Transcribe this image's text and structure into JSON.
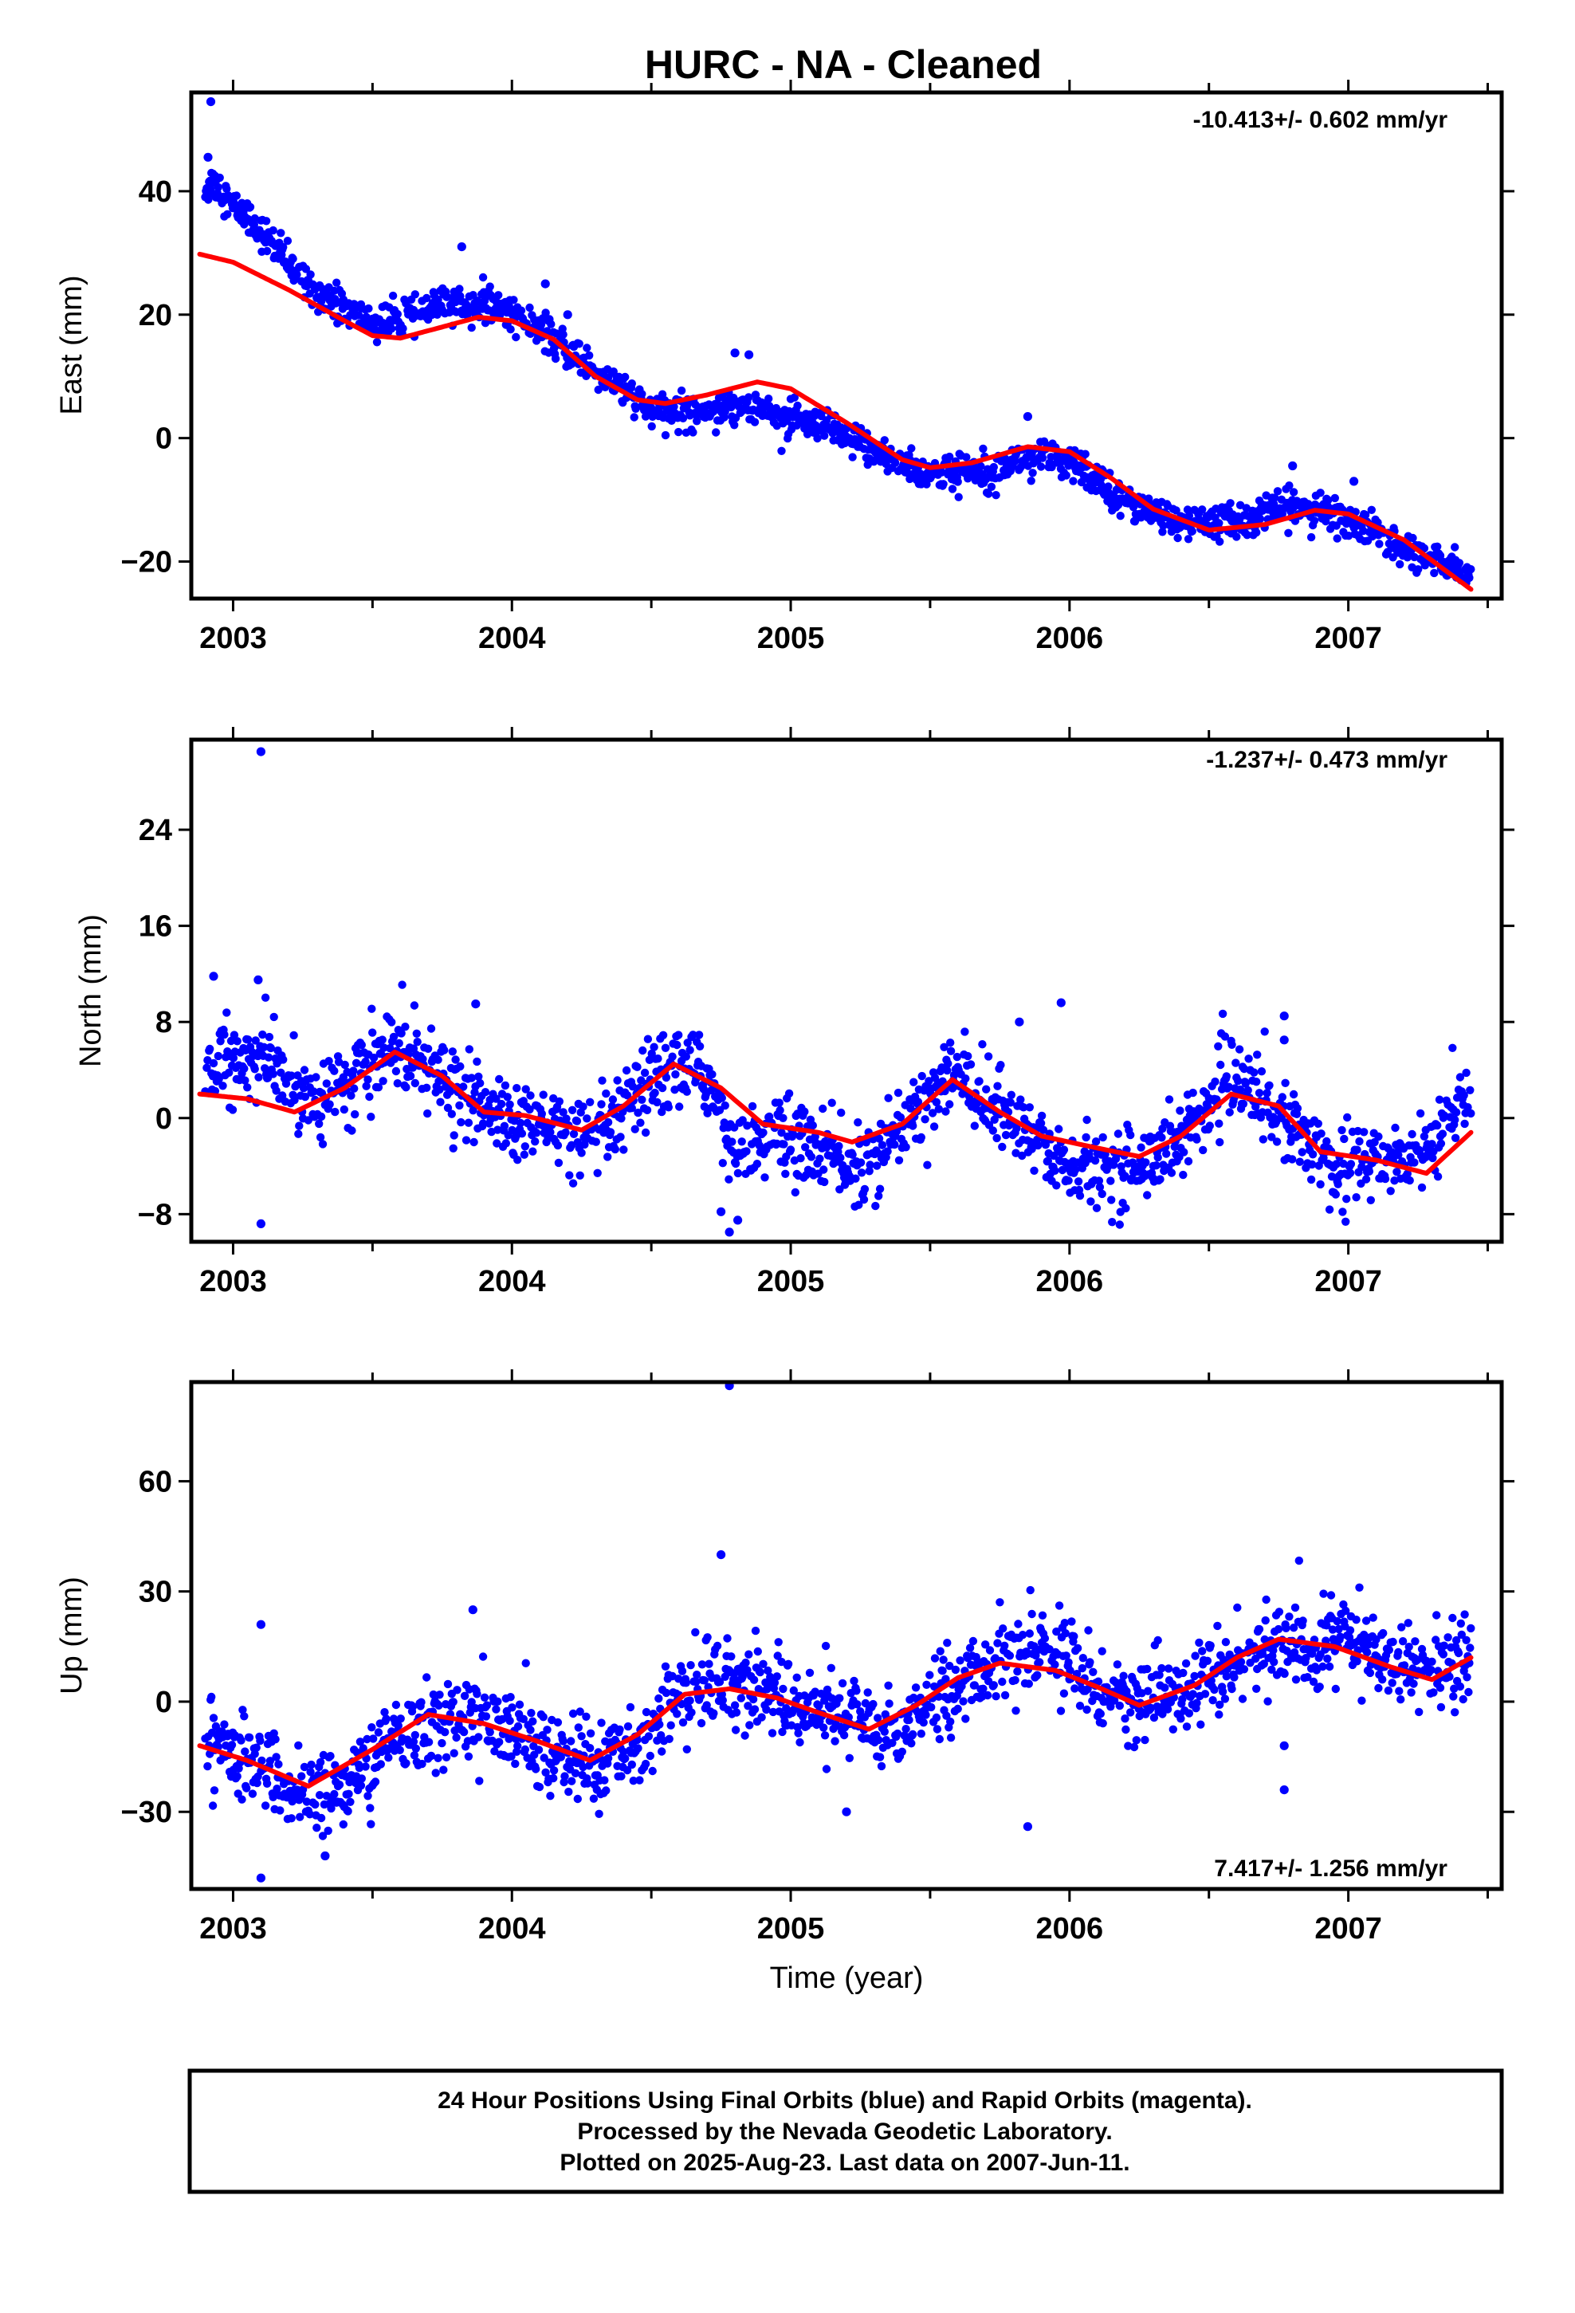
{
  "figure": {
    "title": "HURC  - NA - Cleaned",
    "footer_lines": [
      "24 Hour Positions Using Final Orbits (blue) and Rapid Orbits (magenta).",
      "Processed by the Nevada Geodetic Laboratory.",
      "Plotted on 2025-Aug-23. Last data on 2007-Jun-11."
    ]
  },
  "chart_data": [
    {
      "type": "scatter",
      "panel": "east",
      "ylabel": "East (mm)",
      "xlabel": "",
      "xlim": [
        2002.85,
        2007.55
      ],
      "ylim": [
        -26,
        56
      ],
      "xticks": [
        2003,
        2004,
        2005,
        2006,
        2007
      ],
      "yticks": [
        -20,
        0,
        20,
        40
      ],
      "ytick_labels": [
        "−20",
        "0",
        "20",
        "40"
      ],
      "rate_text": "-10.413+/- 0.602 mm/yr",
      "rate_placement": "top-right",
      "grid": false,
      "colors": {
        "points": "#0000ff",
        "fit": "#ff0000"
      },
      "series": [
        {
          "kind": "fit",
          "x": [
            2002.88,
            2003.0,
            2003.2,
            2003.4,
            2003.5,
            2003.6,
            2003.75,
            2003.88,
            2004.0,
            2004.15,
            2004.3,
            2004.45,
            2004.55,
            2004.7,
            2004.88,
            2005.0,
            2005.2,
            2005.4,
            2005.5,
            2005.65,
            2005.85,
            2006.0,
            2006.15,
            2006.3,
            2006.5,
            2006.7,
            2006.88,
            2007.0,
            2007.2,
            2007.44
          ],
          "y": [
            29.8,
            28.5,
            24,
            19,
            16.6,
            16.2,
            18,
            19.6,
            19,
            16,
            10,
            6.2,
            5.6,
            7,
            9.1,
            8,
            2.5,
            -3.5,
            -4.8,
            -4,
            -1.4,
            -2.2,
            -6.5,
            -11.5,
            -14.9,
            -14,
            -11.7,
            -12.3,
            -16.5,
            -24.5
          ]
        },
        {
          "kind": "points",
          "x": [
            2002.9,
            2002.93,
            2002.97,
            2003.0,
            2003.05,
            2003.1,
            2003.15,
            2003.2,
            2003.3,
            2003.4,
            2003.5,
            2003.6,
            2003.7,
            2003.85,
            2004.0,
            2004.2,
            2004.4,
            2004.5,
            2004.65,
            2004.85,
            2005.0,
            2005.15,
            2005.3,
            2005.5,
            2005.7,
            2005.85,
            2006.0,
            2006.2,
            2006.4,
            2006.6,
            2006.8,
            2007.0,
            2007.2,
            2007.44
          ],
          "y": [
            40.5,
            41.5,
            39.5,
            37.5,
            36,
            33.5,
            31,
            28,
            24,
            21,
            18.5,
            19,
            21,
            22,
            20.5,
            14,
            8,
            4,
            4.5,
            5.5,
            3,
            1,
            -2,
            -6,
            -5,
            -3,
            -4,
            -10,
            -14,
            -13.5,
            -11,
            -13,
            -18,
            -22
          ]
        },
        {
          "kind": "outliers",
          "x": [
            2002.92,
            2002.91,
            2003.82,
            2004.12,
            2004.2,
            2004.85,
            2004.8,
            2005.85,
            2006.8,
            2007.02
          ],
          "y": [
            54.5,
            45.5,
            31,
            25,
            20,
            13.5,
            13.8,
            3.5,
            -4.5,
            -7
          ]
        }
      ]
    },
    {
      "type": "scatter",
      "panel": "north",
      "ylabel": "North (mm)",
      "xlabel": "",
      "xlim": [
        2002.85,
        2007.55
      ],
      "ylim": [
        -10.3,
        31.5
      ],
      "xticks": [
        2003,
        2004,
        2005,
        2006,
        2007
      ],
      "yticks": [
        -8,
        0,
        8,
        16,
        24
      ],
      "ytick_labels": [
        "−8",
        "0",
        "8",
        "16",
        "24"
      ],
      "rate_text": "-1.237+/- 0.473 mm/yr",
      "rate_placement": "top-right",
      "grid": false,
      "colors": {
        "points": "#0000ff",
        "fit": "#ff0000"
      },
      "series": [
        {
          "kind": "fit",
          "x": [
            2002.88,
            2003.05,
            2003.22,
            2003.4,
            2003.58,
            2003.75,
            2003.9,
            2004.05,
            2004.25,
            2004.4,
            2004.58,
            2004.75,
            2004.9,
            2005.1,
            2005.22,
            2005.4,
            2005.58,
            2005.75,
            2005.9,
            2006.1,
            2006.25,
            2006.4,
            2006.58,
            2006.75,
            2006.9,
            2007.1,
            2007.28,
            2007.44
          ],
          "y": [
            2,
            1.6,
            0.5,
            2.5,
            5.5,
            3.5,
            0.5,
            0.2,
            -1,
            1,
            4.5,
            2.5,
            -0.5,
            -1.2,
            -2,
            -0.5,
            3.2,
            0.5,
            -1.5,
            -2.5,
            -3.2,
            -1.5,
            2,
            1,
            -2.8,
            -3.5,
            -4.6,
            -1.2
          ]
        },
        {
          "kind": "points",
          "x": [
            2002.9,
            2003.0,
            2003.1,
            2003.2,
            2003.3,
            2003.45,
            2003.6,
            2003.7,
            2003.85,
            2004.0,
            2004.15,
            2004.3,
            2004.45,
            2004.58,
            2004.7,
            2004.8,
            2004.95,
            2005.1,
            2005.25,
            2005.4,
            2005.58,
            2005.7,
            2005.85,
            2006.0,
            2006.15,
            2006.3,
            2006.45,
            2006.58,
            2006.7,
            2006.85,
            2007.0,
            2007.15,
            2007.3,
            2007.44
          ],
          "y": [
            4,
            4.5,
            5,
            3,
            1.5,
            3.5,
            6.5,
            4,
            1.5,
            -0.5,
            -0.8,
            -2,
            1.5,
            4.5,
            3.5,
            -2.5,
            -1.5,
            -2.5,
            -4.5,
            -1,
            4,
            1.5,
            -1.5,
            -4,
            -4.2,
            -3.5,
            -0.5,
            3.5,
            1.5,
            -2,
            -4,
            -3.5,
            -2,
            2
          ]
        },
        {
          "kind": "outliers",
          "x": [
            2003.1,
            2002.93,
            2003.09,
            2003.1,
            2003.87,
            2004.78,
            2004.81,
            2004.75,
            2005.82,
            2005.97,
            2006.77,
            2006.77
          ],
          "y": [
            30.5,
            11.8,
            11.5,
            -8.8,
            9.5,
            -9.5,
            -8.5,
            -7.8,
            8,
            9.6,
            8.5,
            6.5
          ]
        }
      ]
    },
    {
      "type": "scatter",
      "panel": "up",
      "ylabel": "Up (mm)",
      "xlabel": "Time (year)",
      "xlim": [
        2002.85,
        2007.55
      ],
      "ylim": [
        -51,
        87
      ],
      "xticks": [
        2003,
        2004,
        2005,
        2006,
        2007
      ],
      "yticks": [
        -30,
        0,
        30,
        60
      ],
      "ytick_labels": [
        "−30",
        "0",
        "30",
        "60"
      ],
      "rate_text": "7.417+/- 1.256 mm/yr",
      "rate_placement": "bottom-right",
      "grid": false,
      "colors": {
        "points": "#0000ff",
        "fit": "#ff0000"
      },
      "series": [
        {
          "kind": "fit",
          "x": [
            2002.88,
            2003.05,
            2003.27,
            2003.5,
            2003.7,
            2003.9,
            2004.1,
            2004.28,
            2004.45,
            2004.62,
            2004.78,
            2004.95,
            2005.1,
            2005.28,
            2005.45,
            2005.6,
            2005.75,
            2005.95,
            2006.1,
            2006.25,
            2006.45,
            2006.6,
            2006.75,
            2006.95,
            2007.15,
            2007.3,
            2007.44
          ],
          "y": [
            -12,
            -16,
            -23,
            -13,
            -3.5,
            -6,
            -11,
            -16,
            -9,
            2,
            3.5,
            1,
            -3,
            -7.5,
            -1,
            6.5,
            10.5,
            8.5,
            4,
            -1,
            4.5,
            12,
            17,
            15,
            9.5,
            6,
            12
          ]
        },
        {
          "kind": "points",
          "x": [
            2002.9,
            2003.0,
            2003.1,
            2003.2,
            2003.3,
            2003.4,
            2003.55,
            2003.7,
            2003.85,
            2004.0,
            2004.15,
            2004.3,
            2004.45,
            2004.6,
            2004.75,
            2004.9,
            2005.05,
            2005.2,
            2005.35,
            2005.5,
            2005.65,
            2005.8,
            2005.95,
            2006.1,
            2006.25,
            2006.4,
            2006.55,
            2006.7,
            2006.85,
            2007.0,
            2007.15,
            2007.3,
            2007.44
          ],
          "y": [
            -8,
            -14,
            -18,
            -24,
            -26,
            -24,
            -12,
            -6,
            -4,
            -8,
            -15,
            -18,
            -12,
            2,
            6,
            4,
            -2,
            -4,
            -8,
            0,
            8,
            12,
            14,
            5,
            0,
            3,
            8,
            14,
            15,
            18,
            10,
            8,
            12
          ]
        },
        {
          "kind": "outliers",
          "x": [
            2004.78,
            2004.75,
            2003.1,
            2003.1,
            2003.86,
            2005.85,
            2005.2,
            2006.77,
            2006.77,
            2003.33
          ],
          "y": [
            86,
            40,
            21,
            -48,
            25,
            -34,
            -30,
            -12,
            -24,
            -42
          ]
        }
      ]
    }
  ]
}
